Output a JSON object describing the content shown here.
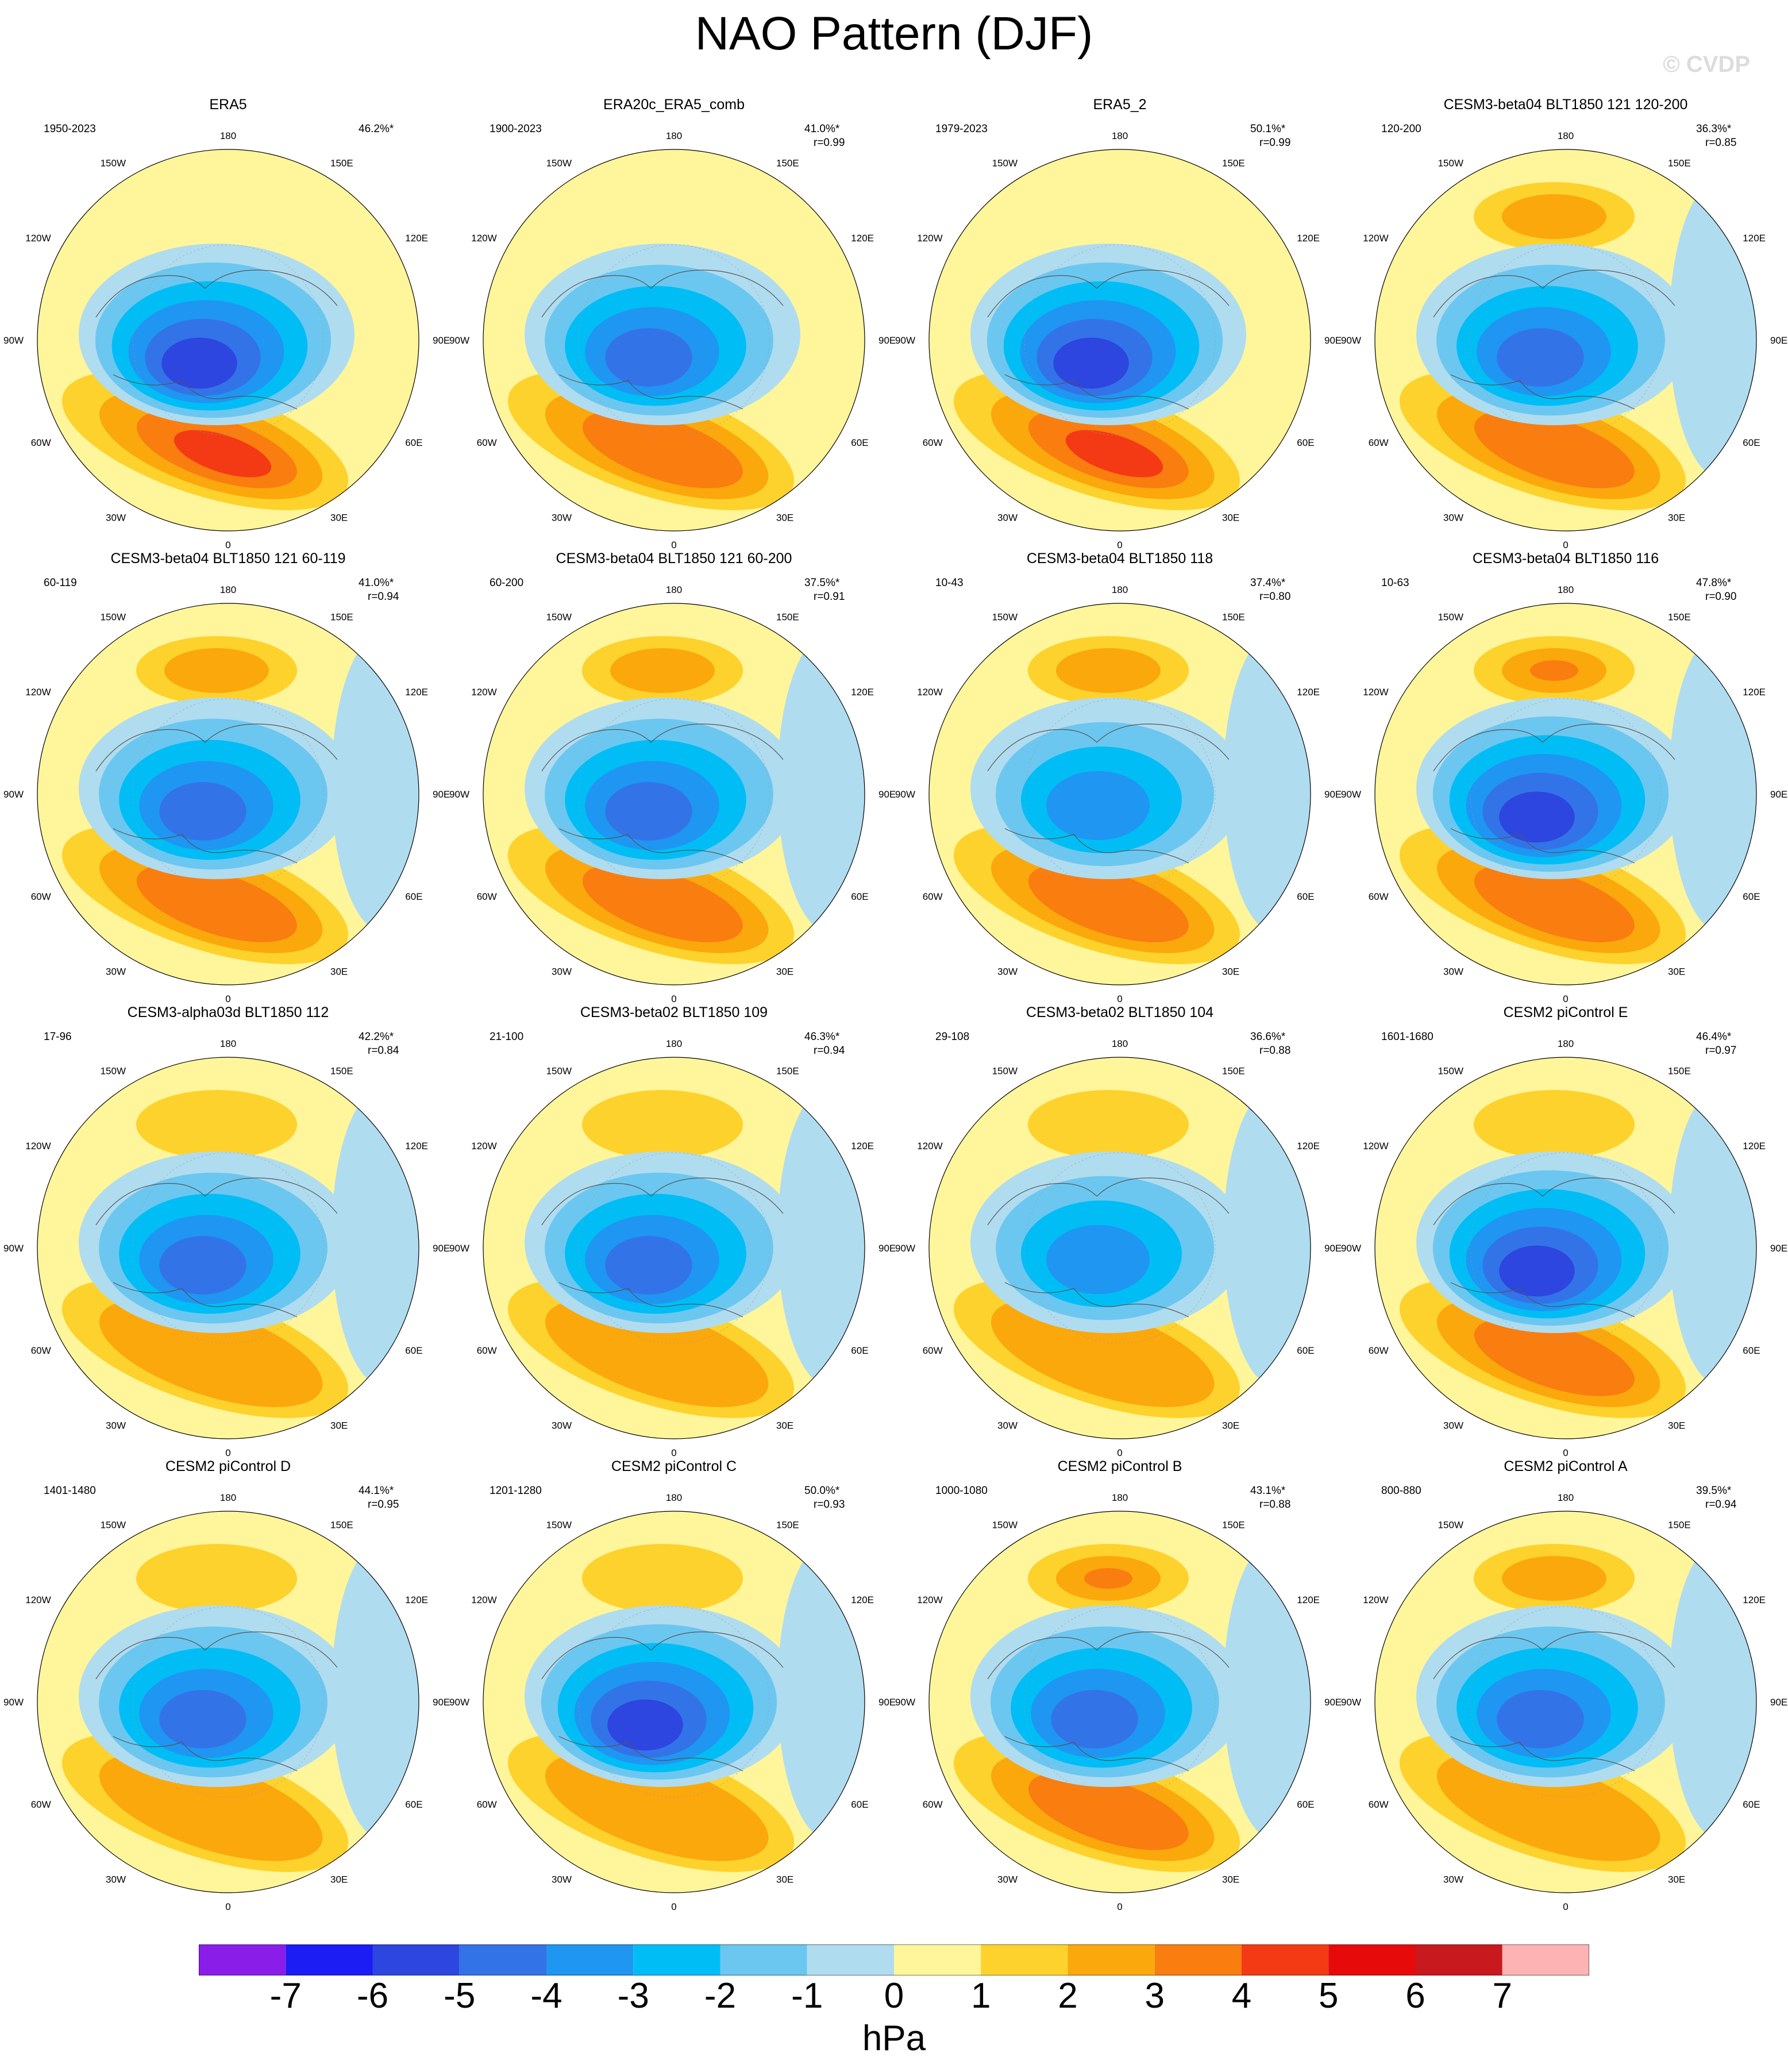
{
  "title": "NAO Pattern (DJF)",
  "watermark": "© CVDP",
  "map": {
    "projection": "polar stereographic, Northern Hemisphere",
    "longitude_labels": [
      "180",
      "150E",
      "120E",
      "90E",
      "60E",
      "30E",
      "0",
      "30W",
      "60W",
      "90W",
      "120W",
      "150W"
    ]
  },
  "panels": [
    {
      "title": "ERA5",
      "period": "1950-2023",
      "pct": "46.2%*",
      "r": "",
      "negative_max": -6,
      "positive_max": 4,
      "pacific_high": 0
    },
    {
      "title": "ERA20c_ERA5_comb",
      "period": "1900-2023",
      "pct": "41.0%*",
      "r": "r=0.99",
      "negative_max": -5,
      "positive_max": 3,
      "pacific_high": 0
    },
    {
      "title": "ERA5_2",
      "period": "1979-2023",
      "pct": "50.1%*",
      "r": "r=0.99",
      "negative_max": -6,
      "positive_max": 4,
      "pacific_high": 0
    },
    {
      "title": "CESM3-beta04 BLT1850 121 120-200",
      "period": "120-200",
      "pct": "36.3%*",
      "r": "r=0.85",
      "negative_max": -5,
      "positive_max": 3,
      "pacific_high": 2
    },
    {
      "title": "CESM3-beta04 BLT1850 121 60-119",
      "period": "60-119",
      "pct": "41.0%*",
      "r": "r=0.94",
      "negative_max": -5,
      "positive_max": 3,
      "pacific_high": 2
    },
    {
      "title": "CESM3-beta04 BLT1850 121 60-200",
      "period": "60-200",
      "pct": "37.5%*",
      "r": "r=0.91",
      "negative_max": -5,
      "positive_max": 3,
      "pacific_high": 2
    },
    {
      "title": "CESM3-beta04 BLT1850 118",
      "period": "10-43",
      "pct": "37.4%*",
      "r": "r=0.80",
      "negative_max": -4,
      "positive_max": 3,
      "pacific_high": 2
    },
    {
      "title": "CESM3-beta04 BLT1850 116",
      "period": "10-63",
      "pct": "47.8%*",
      "r": "r=0.90",
      "negative_max": -6,
      "positive_max": 3,
      "pacific_high": 3
    },
    {
      "title": "CESM3-alpha03d BLT1850 112",
      "period": "17-96",
      "pct": "42.2%*",
      "r": "r=0.84",
      "negative_max": -5,
      "positive_max": 2,
      "pacific_high": 1
    },
    {
      "title": "CESM3-beta02 BLT1850 109",
      "period": "21-100",
      "pct": "46.3%*",
      "r": "r=0.94",
      "negative_max": -5,
      "positive_max": 2,
      "pacific_high": 1
    },
    {
      "title": "CESM3-beta02 BLT1850 104",
      "period": "29-108",
      "pct": "36.6%*",
      "r": "r=0.88",
      "negative_max": -4,
      "positive_max": 2,
      "pacific_high": 1
    },
    {
      "title": "CESM2 piControl E",
      "period": "1601-1680",
      "pct": "46.4%*",
      "r": "r=0.97",
      "negative_max": -6,
      "positive_max": 3,
      "pacific_high": 1
    },
    {
      "title": "CESM2 piControl D",
      "period": "1401-1480",
      "pct": "44.1%*",
      "r": "r=0.95",
      "negative_max": -5,
      "positive_max": 2,
      "pacific_high": 1
    },
    {
      "title": "CESM2 piControl C",
      "period": "1201-1280",
      "pct": "50.0%*",
      "r": "r=0.93",
      "negative_max": -6,
      "positive_max": 2,
      "pacific_high": 1
    },
    {
      "title": "CESM2 piControl B",
      "period": "1000-1080",
      "pct": "43.1%*",
      "r": "r=0.88",
      "negative_max": -5,
      "positive_max": 3,
      "pacific_high": 3
    },
    {
      "title": "CESM2 piControl A",
      "period": "800-880",
      "pct": "39.5%*",
      "r": "r=0.94",
      "negative_max": -5,
      "positive_max": 2,
      "pacific_high": 2
    }
  ],
  "colorbar": {
    "unit": "hPa",
    "labels": [
      "-7",
      "-6",
      "-5",
      "-4",
      "-3",
      "-2",
      "-1",
      "0",
      "1",
      "2",
      "3",
      "4",
      "5",
      "6",
      "7"
    ],
    "colors": [
      "#8a1ee8",
      "#1c1cf5",
      "#2d46e0",
      "#3373e8",
      "#1f96f2",
      "#00bef5",
      "#6cc7f0",
      "#b0dcf0",
      "#fff59a",
      "#fdd22c",
      "#fba80d",
      "#fa7d0f",
      "#f43a14",
      "#e60a0a",
      "#c8191e",
      "#fdb3b3"
    ]
  }
}
